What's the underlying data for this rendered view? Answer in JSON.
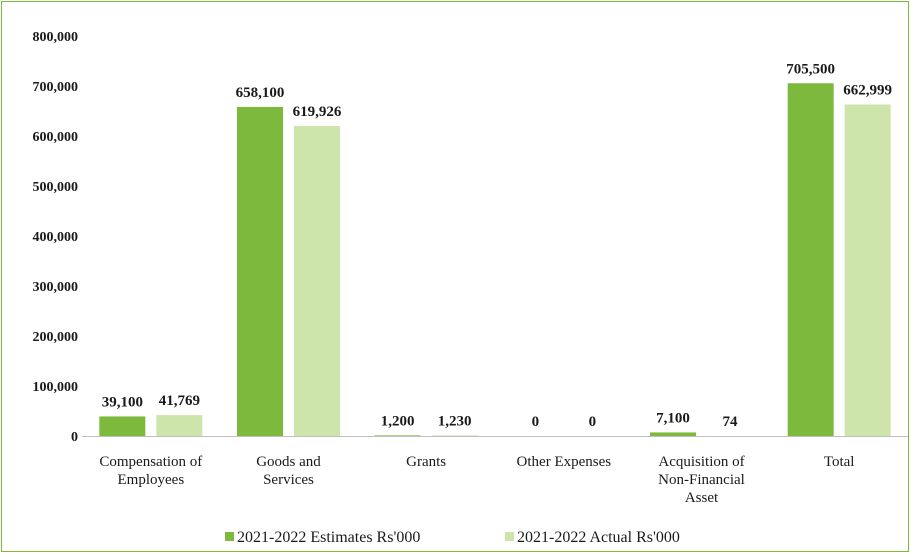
{
  "chart_data": {
    "type": "bar",
    "categories": [
      [
        "Compensation of",
        "Employees"
      ],
      [
        "Goods and",
        "Services"
      ],
      [
        "Grants"
      ],
      [
        "Other Expenses"
      ],
      [
        "Acquisition of",
        "Non-Financial",
        "Asset"
      ],
      [
        "Total"
      ]
    ],
    "series": [
      {
        "name": "2021-2022 Estimates Rs'000",
        "color": "#7cb93d",
        "values": [
          39100,
          658100,
          1200,
          0,
          7100,
          705500
        ],
        "labels": [
          "39,100",
          "658,100",
          "1,200",
          "0",
          "7,100",
          "705,500"
        ]
      },
      {
        "name": "2021-2022 Actual Rs'000",
        "color": "#cde5ab",
        "values": [
          41769,
          619926,
          1230,
          0,
          74,
          662999
        ],
        "labels": [
          "41,769",
          "619,926",
          "1,230",
          "0",
          "74",
          "662,999"
        ]
      }
    ],
    "y_ticks": [
      "0",
      "100,000",
      "200,000",
      "300,000",
      "400,000",
      "500,000",
      "600,000",
      "700,000",
      "800,000"
    ],
    "ylim": [
      0,
      800000
    ],
    "grid": false,
    "legend_position": "bottom",
    "title": "",
    "xlabel": "",
    "ylabel": ""
  }
}
